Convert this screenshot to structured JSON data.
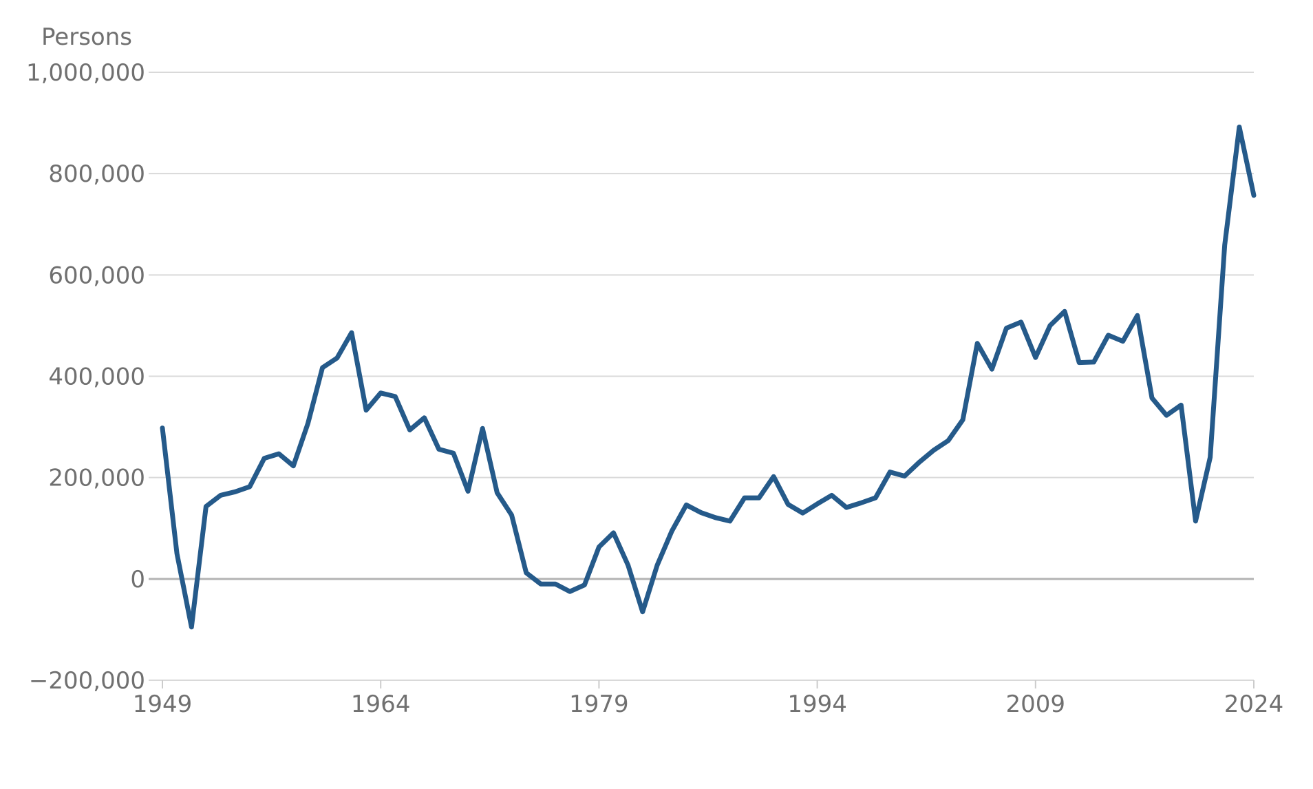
{
  "chart_data": {
    "type": "line",
    "ylabel": "Persons",
    "xlabel": "",
    "title": "",
    "ylim": [
      -200000,
      1000000
    ],
    "xlim": [
      1949,
      2024
    ],
    "y_ticks": [
      1000000,
      800000,
      600000,
      400000,
      200000,
      0,
      -200000
    ],
    "y_tick_labels": [
      "1,000,000",
      "800,000",
      "600,000",
      "400,000",
      "200,000",
      "0",
      "−200,000"
    ],
    "x_ticks": [
      1949,
      1964,
      1979,
      1994,
      2009,
      2024
    ],
    "x_tick_labels": [
      "1949",
      "1964",
      "1979",
      "1994",
      "2009",
      "2024"
    ],
    "grid": true,
    "colors": {
      "series": "#255a8a",
      "grid": "#d9d9d9",
      "zero_line": "#b3b3b3",
      "text": "#707070"
    },
    "series": [
      {
        "x": [
          1949,
          1950,
          1951,
          1952,
          1953,
          1954,
          1955,
          1956,
          1957,
          1958,
          1959,
          1960,
          1961,
          1962,
          1963,
          1964,
          1965,
          1966,
          1967,
          1968,
          1969,
          1970,
          1971,
          1972,
          1973,
          1974,
          1975,
          1976,
          1977,
          1978,
          1979,
          1980,
          1981,
          1982,
          1983,
          1984,
          1985,
          1986,
          1987,
          1988,
          1989,
          1990,
          1991,
          1992,
          1993,
          1994,
          1995,
          1996,
          1997,
          1998,
          1999,
          2000,
          2001,
          2002,
          2003,
          2004,
          2005,
          2006,
          2007,
          2008,
          2009,
          2010,
          2011,
          2012,
          2013,
          2014,
          2015,
          2016,
          2017,
          2018,
          2019,
          2020,
          2021,
          2022,
          2023,
          2024
        ],
        "values": [
          298000,
          50000,
          -95000,
          143000,
          165000,
          172000,
          182000,
          238000,
          247000,
          223000,
          307000,
          417000,
          436000,
          486000,
          333000,
          367000,
          360000,
          294000,
          318000,
          256000,
          248000,
          173000,
          297000,
          170000,
          126000,
          12000,
          -10000,
          -10000,
          -25000,
          -12000,
          63000,
          91000,
          27000,
          -65000,
          27000,
          94000,
          146000,
          131000,
          121000,
          114000,
          160000,
          160000,
          202000,
          147000,
          130000,
          148000,
          165000,
          141000,
          150000,
          160000,
          211000,
          203000,
          230000,
          254000,
          273000,
          314000,
          465000,
          414000,
          495000,
          507000,
          437000,
          500000,
          528000,
          427000,
          428000,
          481000,
          469000,
          520000,
          357000,
          323000,
          343000,
          114000,
          240000,
          659000,
          892000,
          757000
        ]
      }
    ]
  }
}
